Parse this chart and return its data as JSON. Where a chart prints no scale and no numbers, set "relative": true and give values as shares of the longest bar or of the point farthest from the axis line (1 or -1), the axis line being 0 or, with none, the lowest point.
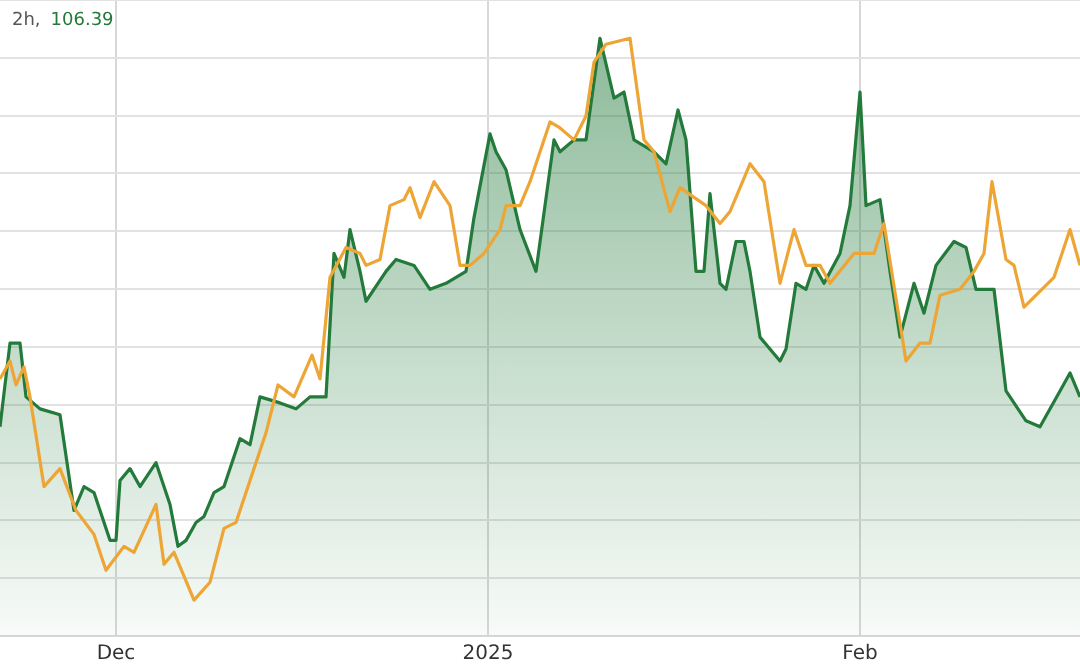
{
  "chart_data": {
    "type": "line",
    "relative": true,
    "grid": true,
    "legend": false,
    "marker": "none",
    "annotations": [
      "2h,",
      "106.39"
    ],
    "xlim": [
      "2024-11-21T08:00",
      "2025-02-19T08:00"
    ],
    "xticks": [
      {
        "value": "2024-12-01",
        "label": "Dec"
      },
      {
        "value": "2025-01-01",
        "label": "2025"
      },
      {
        "value": "2025-02-01",
        "label": "Feb"
      }
    ],
    "series": [
      {
        "type": "area",
        "color": "#237a3b",
        "x": [
          "2024-11-21T08:00",
          "2024-11-22T04:00",
          "2024-11-23T00:00",
          "2024-11-23T12:00",
          "2024-11-24T16:00",
          "2024-11-26T08:00",
          "2024-11-27T12:00",
          "2024-11-28T08:00",
          "2024-11-29T04:00",
          "2024-11-30T12:00",
          "2024-12-01T00:00",
          "2024-12-01T08:00",
          "2024-12-02T04:00",
          "2024-12-03T00:00",
          "2024-12-04T08:00",
          "2024-12-05T12:00",
          "2024-12-06T04:00",
          "2024-12-06T20:00",
          "2024-12-07T16:00",
          "2024-12-08T08:00",
          "2024-12-09T04:00",
          "2024-12-10T00:00",
          "2024-12-11T08:00",
          "2024-12-12T04:00",
          "2024-12-13T00:00",
          "2024-12-14T16:00",
          "2024-12-16T00:00",
          "2024-12-17T04:00",
          "2024-12-18T12:00",
          "2024-12-19T04:00",
          "2024-12-20T00:00",
          "2024-12-20T12:00",
          "2024-12-21T08:00",
          "2024-12-21T20:00",
          "2024-12-23T12:00",
          "2024-12-24T08:00",
          "2024-12-25T20:00",
          "2024-12-27T04:00",
          "2024-12-28T12:00",
          "2024-12-30T04:00",
          "2024-12-30T20:00",
          "2025-01-01T04:00",
          "2025-01-01T16:00",
          "2025-01-02T12:00",
          "2025-01-03T16:00",
          "2025-01-05T00:00",
          "2025-01-06T12:00",
          "2025-01-07T00:00",
          "2025-01-08T04:00",
          "2025-01-09T04:00",
          "2025-01-10T08:00",
          "2025-01-11T12:00",
          "2025-01-12T08:00",
          "2025-01-13T04:00",
          "2025-01-14T20:00",
          "2025-01-15T20:00",
          "2025-01-16T20:00",
          "2025-01-17T12:00",
          "2025-01-18T08:00",
          "2025-01-19T00:00",
          "2025-01-19T12:00",
          "2025-01-20T08:00",
          "2025-01-20T20:00",
          "2025-01-21T16:00",
          "2025-01-22T08:00",
          "2025-01-22T20:00",
          "2025-01-23T16:00",
          "2025-01-25T08:00",
          "2025-01-25T20:00",
          "2025-01-26T16:00",
          "2025-01-27T12:00",
          "2025-01-28T04:00",
          "2025-01-29T00:00",
          "2025-01-30T08:00",
          "2025-01-31T04:00",
          "2025-02-01T00:00",
          "2025-02-01T12:00",
          "2025-02-02T16:00",
          "2025-02-03T12:00",
          "2025-02-04T08:00",
          "2025-02-05T12:00",
          "2025-02-06T08:00",
          "2025-02-07T08:00",
          "2025-02-08T20:00",
          "2025-02-09T20:00",
          "2025-02-10T16:00",
          "2025-02-12T04:00",
          "2025-02-13T04:00",
          "2025-02-14T20:00",
          "2025-02-16T00:00",
          "2025-02-17T16:00",
          "2025-02-18T12:00",
          "2025-02-19T08:00"
        ],
        "values": [
          0.35,
          0.49,
          0.49,
          0.4,
          0.38,
          0.37,
          0.21,
          0.25,
          0.24,
          0.16,
          0.16,
          0.26,
          0.28,
          0.25,
          0.29,
          0.22,
          0.15,
          0.16,
          0.19,
          0.2,
          0.24,
          0.25,
          0.33,
          0.32,
          0.4,
          0.39,
          0.38,
          0.4,
          0.4,
          0.64,
          0.6,
          0.68,
          0.61,
          0.56,
          0.61,
          0.63,
          0.62,
          0.58,
          0.59,
          0.61,
          0.7,
          0.84,
          0.81,
          0.78,
          0.68,
          0.61,
          0.83,
          0.81,
          0.83,
          0.83,
          1.0,
          0.9,
          0.91,
          0.83,
          0.81,
          0.79,
          0.88,
          0.83,
          0.61,
          0.61,
          0.74,
          0.59,
          0.58,
          0.66,
          0.66,
          0.61,
          0.5,
          0.46,
          0.48,
          0.59,
          0.58,
          0.62,
          0.59,
          0.64,
          0.72,
          0.91,
          0.72,
          0.73,
          0.61,
          0.5,
          0.59,
          0.54,
          0.62,
          0.66,
          0.65,
          0.58,
          0.58,
          0.41,
          0.36,
          0.35,
          0.41,
          0.44,
          0.4
        ]
      },
      {
        "type": "line",
        "color": "#eda536",
        "x": [
          "2024-11-21T08:00",
          "2024-11-22T04:00",
          "2024-11-22T16:00",
          "2024-11-23T08:00",
          "2024-11-23T20:00",
          "2024-11-25T00:00",
          "2024-11-26T08:00",
          "2024-11-27T16:00",
          "2024-11-29T04:00",
          "2024-11-30T04:00",
          "2024-12-01T16:00",
          "2024-12-02T12:00",
          "2024-12-04T08:00",
          "2024-12-05T00:00",
          "2024-12-05T20:00",
          "2024-12-06T16:00",
          "2024-12-07T12:00",
          "2024-12-08T20:00",
          "2024-12-10T00:00",
          "2024-12-11T00:00",
          "2024-12-12T12:00",
          "2024-12-13T12:00",
          "2024-12-14T12:00",
          "2024-12-15T20:00",
          "2024-12-17T08:00",
          "2024-12-18T00:00",
          "2024-12-18T20:00",
          "2024-12-20T04:00",
          "2024-12-21T08:00",
          "2024-12-21T20:00",
          "2024-12-23T00:00",
          "2024-12-23T20:00",
          "2024-12-25T00:00",
          "2024-12-25T12:00",
          "2024-12-26T08:00",
          "2024-12-27T12:00",
          "2024-12-28T20:00",
          "2024-12-29T16:00",
          "2024-12-30T12:00",
          "2024-12-31T16:00",
          "2025-01-02T00:00",
          "2025-01-02T12:00",
          "2025-01-03T16:00",
          "2025-01-04T12:00",
          "2025-01-06T04:00",
          "2025-01-07T00:00",
          "2025-01-08T04:00",
          "2025-01-09T04:00",
          "2025-01-09T20:00",
          "2025-01-10T20:00",
          "2025-01-12T20:00",
          "2025-01-14T00:00",
          "2025-01-14T20:00",
          "2025-01-16T04:00",
          "2025-01-17T00:00",
          "2025-01-19T04:00",
          "2025-01-20T08:00",
          "2025-01-21T04:00",
          "2025-01-22T20:00",
          "2025-01-24T00:00",
          "2025-01-25T08:00",
          "2025-01-26T12:00",
          "2025-01-27T12:00",
          "2025-01-28T16:00",
          "2025-01-29T12:00",
          "2025-01-31T12:00",
          "2025-02-02T04:00",
          "2025-02-03T00:00",
          "2025-02-04T20:00",
          "2025-02-06T00:00",
          "2025-02-06T20:00",
          "2025-02-07T16:00",
          "2025-02-09T08:00",
          "2025-02-10T12:00",
          "2025-02-11T08:00",
          "2025-02-12T00:00",
          "2025-02-13T04:00",
          "2025-02-13T20:00",
          "2025-02-14T16:00",
          "2025-02-17T04:00",
          "2025-02-18T12:00",
          "2025-02-19T08:00"
        ],
        "values": [
          0.43,
          0.46,
          0.42,
          0.45,
          0.4,
          0.25,
          0.28,
          0.21,
          0.17,
          0.11,
          0.15,
          0.14,
          0.22,
          0.12,
          0.14,
          0.1,
          0.06,
          0.09,
          0.18,
          0.19,
          0.28,
          0.34,
          0.42,
          0.4,
          0.47,
          0.43,
          0.6,
          0.65,
          0.64,
          0.62,
          0.63,
          0.72,
          0.73,
          0.75,
          0.7,
          0.76,
          0.72,
          0.62,
          0.62,
          0.64,
          0.68,
          0.72,
          0.72,
          0.76,
          0.86,
          0.85,
          0.83,
          0.87,
          0.96,
          0.99,
          1.0,
          0.83,
          0.81,
          0.71,
          0.75,
          0.72,
          0.69,
          0.71,
          0.79,
          0.76,
          0.59,
          0.68,
          0.62,
          0.62,
          0.59,
          0.64,
          0.64,
          0.69,
          0.46,
          0.49,
          0.49,
          0.57,
          0.58,
          0.61,
          0.64,
          0.76,
          0.63,
          0.62,
          0.55,
          0.6,
          0.68,
          0.62
        ]
      }
    ]
  }
}
